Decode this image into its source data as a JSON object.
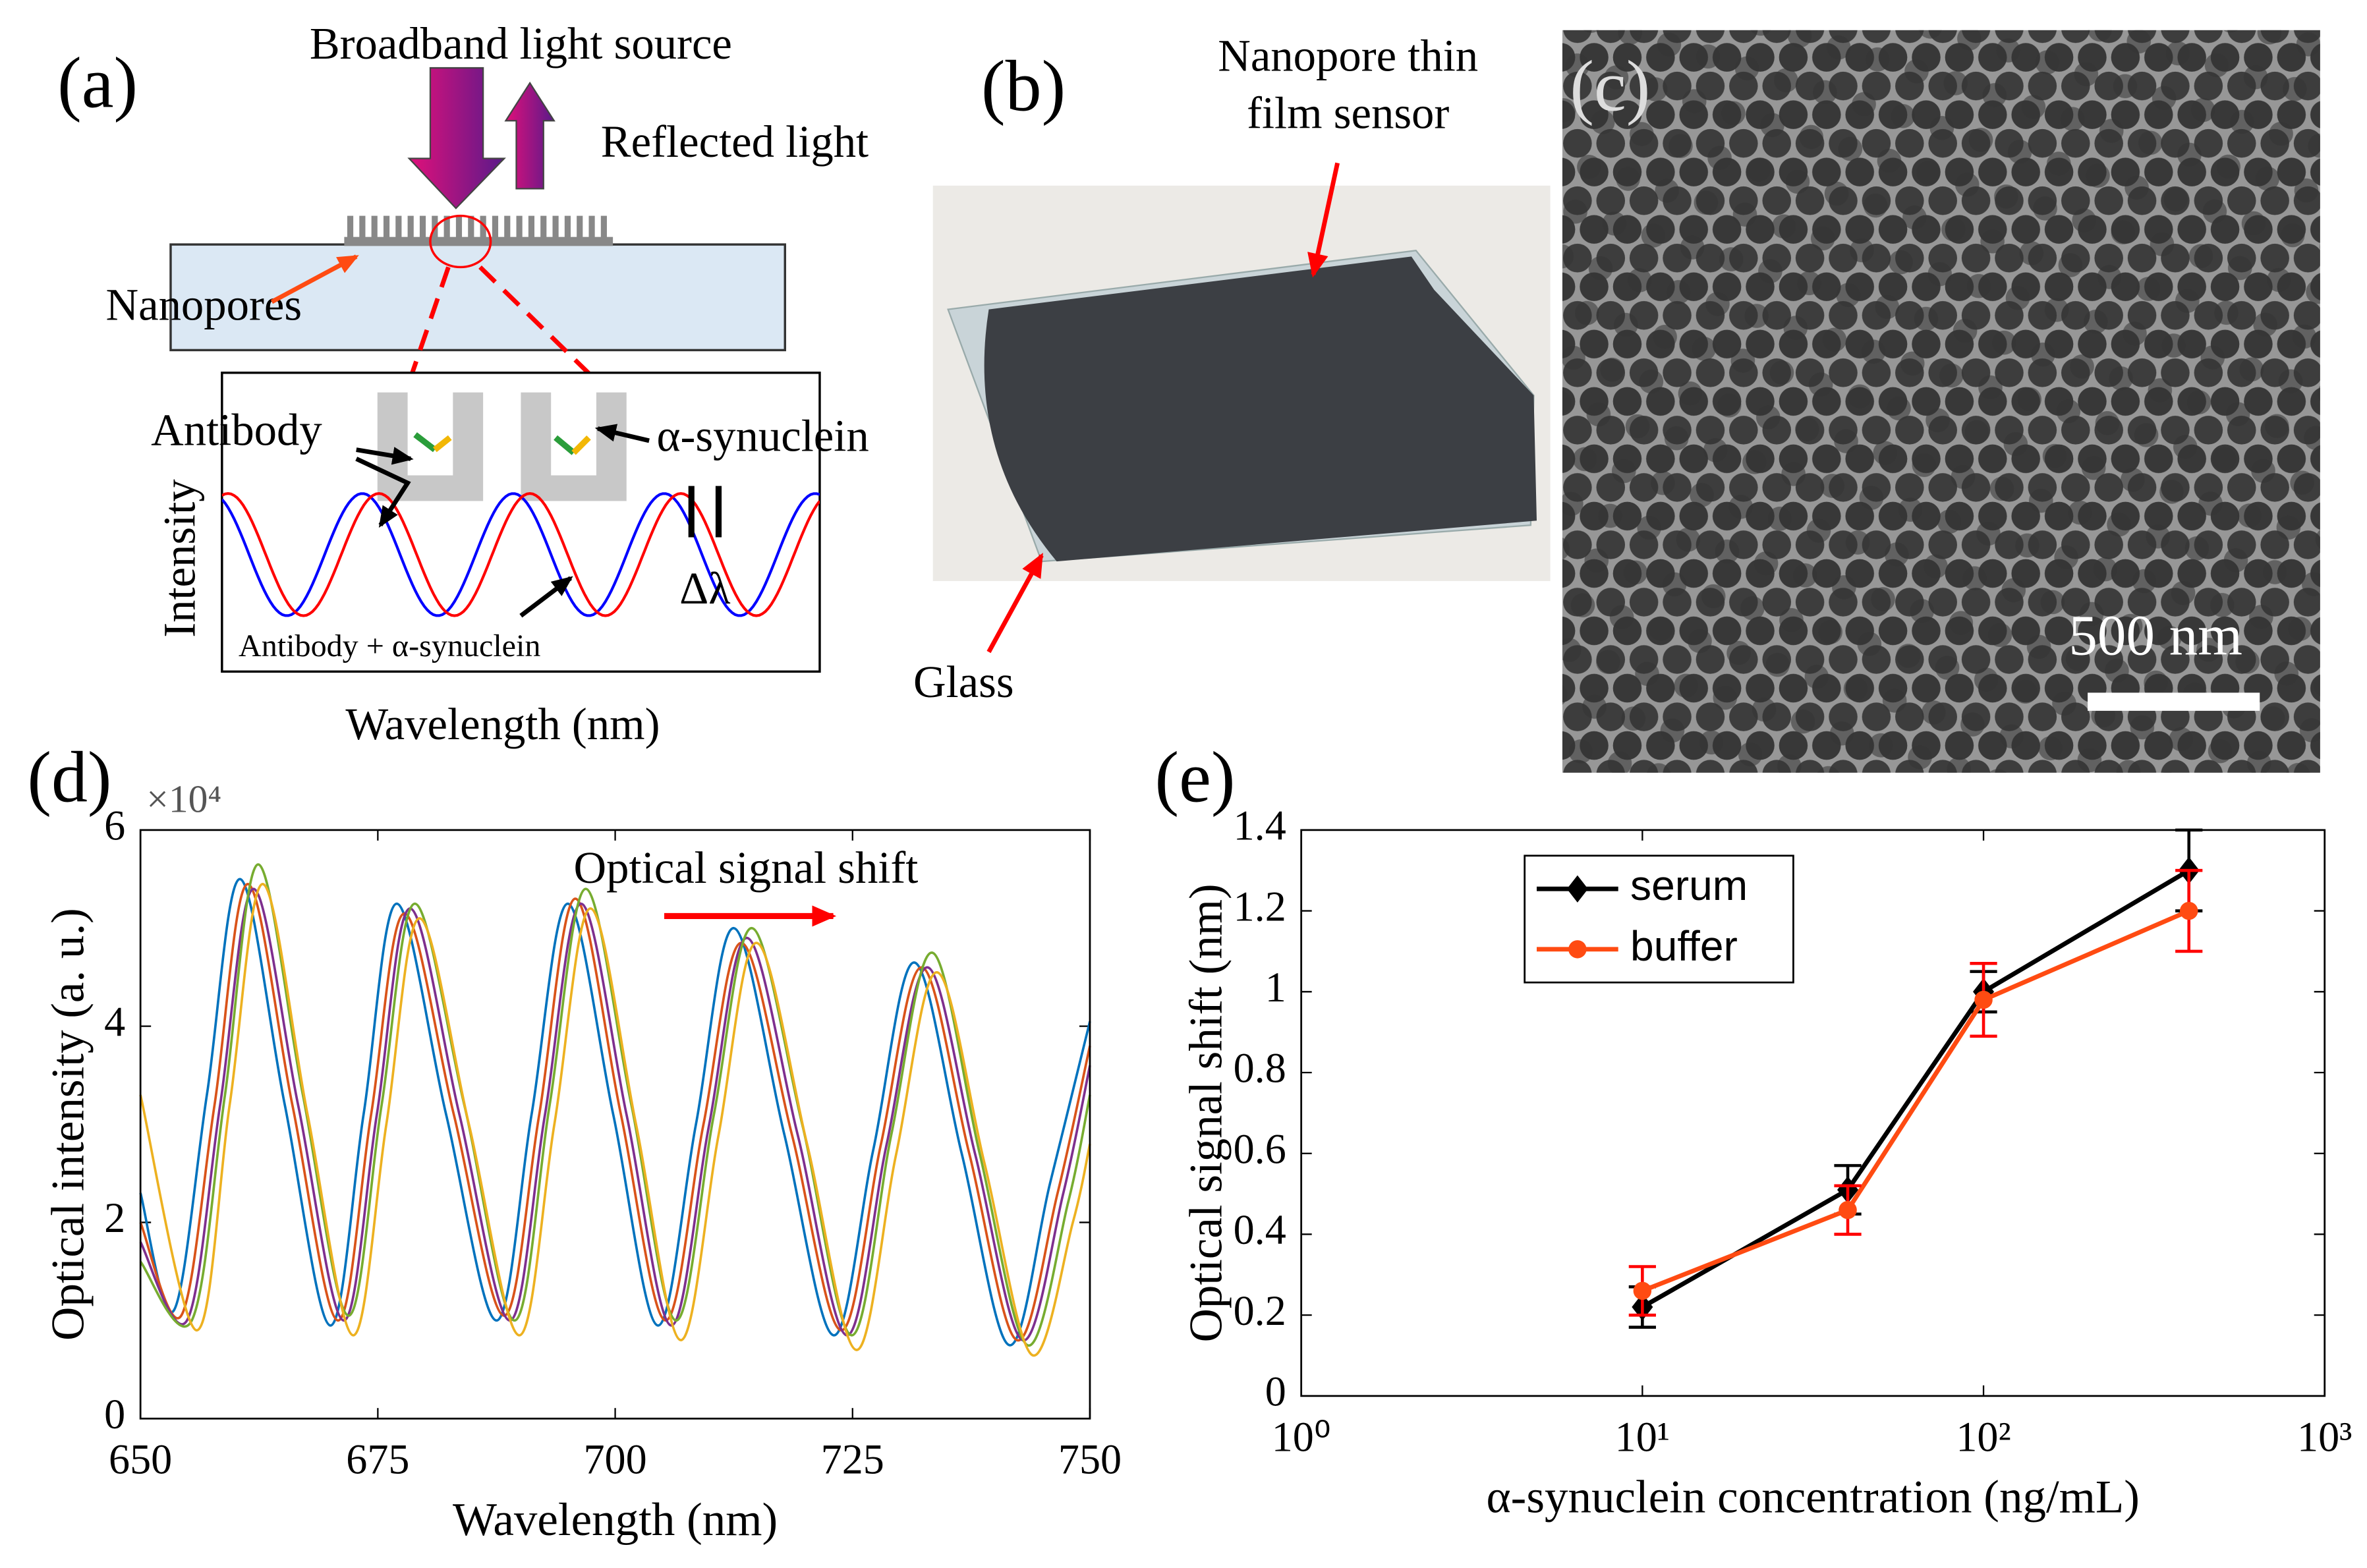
{
  "panels": {
    "a": {
      "label": "(a)",
      "source": "Broadband light source",
      "reflected": "Reflected light",
      "nanopores": "Nanopores",
      "antibody": "Antibody",
      "synuclein": "α-synuclein",
      "ylabel": "Intensity",
      "shift": "Δλ",
      "curve_label": "Antibody + α-synuclein",
      "xlabel": "Wavelength (nm)"
    },
    "b": {
      "label": "(b)",
      "sensor": [
        "Nanopore thin",
        "film sensor"
      ],
      "glass": "Glass"
    },
    "c": {
      "label": "(c)",
      "scale": "500 nm"
    }
  },
  "chart_data": [
    {
      "type": "line",
      "label": "(d)",
      "xlabel": "Wavelength (nm)",
      "ylabel": "Optical intensity (a. u.)",
      "ymultiplier": "×10⁴",
      "annotation": "Optical signal shift",
      "xlim": [
        650,
        750
      ],
      "xticks": [
        650,
        675,
        700,
        725,
        750
      ],
      "ylim": [
        0,
        6
      ],
      "yticks": [
        0,
        2,
        4,
        6
      ],
      "series": [
        {
          "color": "#0072bd",
          "x": [
            650,
            653.5,
            657,
            660.5,
            665.2,
            670,
            673.5,
            677,
            682.2,
            687.5,
            691.2,
            695,
            699.8,
            704.5,
            708.5,
            712.5,
            717.8,
            723,
            727.2,
            731.5,
            736.5,
            741.5,
            745.8,
            750
          ],
          "values": [
            2.3,
            1.1,
            3.3,
            5.5,
            3.2,
            0.95,
            3.1,
            5.25,
            3.1,
            1.0,
            3.1,
            5.25,
            3.1,
            0.95,
            3.0,
            5.0,
            2.9,
            0.85,
            2.75,
            4.65,
            2.7,
            0.75,
            2.4,
            4.05
          ]
        },
        {
          "color": "#d95319",
          "x": [
            650,
            654.3,
            657.8,
            661.3,
            666,
            670.8,
            674.3,
            677.8,
            683,
            688.3,
            692,
            695.8,
            700.6,
            705.3,
            709.3,
            713.3,
            718.6,
            723.8,
            728,
            732.3,
            737.3,
            742.3,
            746.6,
            750
          ],
          "values": [
            2.0,
            1.05,
            3.2,
            5.45,
            3.2,
            1.0,
            3.1,
            5.15,
            3.1,
            1.05,
            3.1,
            5.3,
            3.1,
            1.0,
            3.0,
            4.85,
            2.9,
            0.9,
            2.8,
            4.6,
            2.7,
            0.8,
            2.3,
            3.8
          ]
        },
        {
          "color": "#7e2f8e",
          "x": [
            650,
            654.9,
            658.4,
            661.9,
            666.6,
            671.4,
            674.9,
            678.4,
            683.6,
            688.9,
            692.6,
            696.4,
            701.2,
            705.9,
            709.9,
            713.9,
            719.2,
            724.4,
            728.6,
            732.9,
            737.9,
            742.9,
            747.2,
            750
          ],
          "values": [
            1.8,
            1.0,
            3.2,
            5.4,
            3.2,
            1.0,
            3.1,
            5.2,
            3.1,
            1.0,
            3.1,
            5.25,
            3.1,
            0.95,
            3.0,
            4.9,
            2.9,
            0.85,
            2.8,
            4.6,
            2.7,
            0.8,
            2.3,
            3.6
          ]
        },
        {
          "color": "#77ac30",
          "x": [
            650,
            655.4,
            658.9,
            662.4,
            667.1,
            671.9,
            675.4,
            678.9,
            684.1,
            689.4,
            693.1,
            696.9,
            701.7,
            706.4,
            710.4,
            714.4,
            719.7,
            724.9,
            729.1,
            733.4,
            738.4,
            743.4,
            747.7,
            750
          ],
          "values": [
            1.6,
            1.0,
            3.3,
            5.65,
            3.3,
            1.05,
            3.2,
            5.25,
            3.2,
            1.0,
            3.2,
            5.4,
            3.2,
            1.0,
            3.1,
            5.0,
            3.0,
            0.85,
            2.9,
            4.75,
            2.7,
            0.75,
            2.2,
            3.3
          ]
        },
        {
          "color": "#edb120",
          "x": [
            650,
            655.9,
            659.4,
            662.9,
            667.6,
            672.4,
            675.9,
            679.4,
            684.6,
            689.9,
            693.6,
            697.4,
            702.2,
            706.9,
            710.9,
            714.9,
            720.2,
            725.4,
            729.6,
            733.9,
            738.9,
            743.9,
            748.2,
            750
          ],
          "values": [
            3.3,
            0.9,
            3.2,
            5.45,
            3.1,
            0.85,
            3.0,
            5.1,
            3.0,
            0.85,
            3.0,
            5.2,
            3.0,
            0.8,
            2.9,
            4.85,
            2.8,
            0.7,
            2.7,
            4.55,
            2.6,
            0.65,
            2.0,
            2.8
          ]
        }
      ]
    },
    {
      "type": "errorline",
      "label": "(e)",
      "xlabel": "α-synuclein concentration (ng/mL)",
      "ylabel": "Optical signal shift (nm)",
      "xscale": "log",
      "xlim": [
        1,
        1000
      ],
      "xticks": [
        {
          "value": 1,
          "label": "10⁰"
        },
        {
          "value": 10,
          "label": "10¹"
        },
        {
          "value": 100,
          "label": "10²"
        },
        {
          "value": 1000,
          "label": "10³"
        }
      ],
      "ylim": [
        0,
        1.4
      ],
      "yticks": [
        0,
        0.2,
        0.4,
        0.6,
        0.8,
        1,
        1.2,
        1.4
      ],
      "legend": "upper left",
      "x": [
        10,
        40,
        100,
        400
      ],
      "series": [
        {
          "name": "serum",
          "color": "#000000",
          "error_color": "#000000",
          "marker": "diamond",
          "values": [
            0.22,
            0.51,
            1.0,
            1.3
          ],
          "errors": [
            0.05,
            0.06,
            0.05,
            0.1
          ]
        },
        {
          "name": "buffer",
          "color": "#ff4b12",
          "error_color": "#ff0000",
          "marker": "circle",
          "values": [
            0.26,
            0.46,
            0.98,
            1.2
          ],
          "errors": [
            0.06,
            0.06,
            0.09,
            0.1
          ]
        }
      ]
    }
  ]
}
